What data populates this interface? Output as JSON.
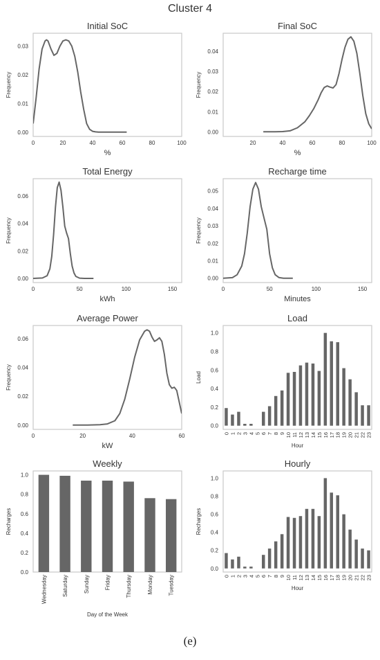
{
  "figure": {
    "title": "Cluster 4",
    "panel_label": "(e)"
  },
  "chart_data": [
    {
      "type": "line",
      "title": "Initial SoC",
      "xlabel": "%",
      "ylabel": "Frequency",
      "xlim": [
        0,
        100
      ],
      "ylim": [
        -0.0015,
        0.0345
      ],
      "xticks": [
        0,
        20,
        40,
        60,
        80,
        100
      ],
      "yticks": [
        0.0,
        0.01,
        0.02,
        0.03
      ],
      "ytick_labels": [
        "0.00",
        "0.01",
        "0.02",
        "0.03"
      ],
      "grid": false,
      "color": "#666666",
      "x": [
        0,
        2,
        4,
        6,
        8,
        9,
        10,
        12,
        14,
        16,
        18,
        20,
        22,
        24,
        26,
        28,
        30,
        32,
        34,
        36,
        38,
        40,
        42,
        44,
        46,
        48,
        50,
        55,
        60,
        63
      ],
      "y": [
        0.003,
        0.012,
        0.022,
        0.029,
        0.0318,
        0.0322,
        0.0318,
        0.029,
        0.0268,
        0.0275,
        0.03,
        0.0318,
        0.0322,
        0.0318,
        0.03,
        0.0265,
        0.021,
        0.014,
        0.008,
        0.003,
        0.001,
        0.0003,
        0.0001,
        0,
        0,
        0,
        0,
        0,
        0,
        0
      ]
    },
    {
      "type": "line",
      "title": "Final SoC",
      "xlabel": "%",
      "ylabel": "Frequency",
      "xlim": [
        0,
        100
      ],
      "ylim": [
        -0.0023,
        0.049
      ],
      "xticks": [
        20,
        40,
        60,
        80,
        100
      ],
      "yticks": [
        0.0,
        0.01,
        0.02,
        0.03,
        0.04
      ],
      "ytick_labels": [
        "0.00",
        "0.01",
        "0.02",
        "0.03",
        "0.04"
      ],
      "grid": false,
      "color": "#666666",
      "x": [
        27,
        35,
        40,
        45,
        50,
        55,
        58,
        61,
        64,
        66,
        68,
        70,
        72,
        74,
        76,
        78,
        80,
        82,
        84,
        86,
        88,
        90,
        92,
        94,
        96,
        98,
        100
      ],
      "y": [
        0,
        0,
        0.0001,
        0.0005,
        0.002,
        0.005,
        0.008,
        0.0115,
        0.016,
        0.0195,
        0.022,
        0.0228,
        0.0222,
        0.0218,
        0.0235,
        0.029,
        0.036,
        0.042,
        0.046,
        0.0472,
        0.045,
        0.039,
        0.029,
        0.018,
        0.009,
        0.004,
        0.0015
      ]
    },
    {
      "type": "line",
      "title": "Total Energy",
      "xlabel": "kWh",
      "ylabel": "Frequency",
      "xlim": [
        0,
        160
      ],
      "ylim": [
        -0.003,
        0.0725
      ],
      "xticks": [
        0,
        50,
        100,
        150
      ],
      "yticks": [
        0.0,
        0.02,
        0.04,
        0.06
      ],
      "ytick_labels": [
        "0.00",
        "0.02",
        "0.04",
        "0.06"
      ],
      "grid": false,
      "color": "#666666",
      "x": [
        0,
        10,
        15,
        18,
        20,
        22,
        24,
        26,
        28,
        30,
        32,
        34,
        36,
        38,
        40,
        42,
        44,
        46,
        50,
        55,
        60,
        65
      ],
      "y": [
        0,
        0.0003,
        0.002,
        0.007,
        0.016,
        0.032,
        0.052,
        0.066,
        0.07,
        0.064,
        0.052,
        0.038,
        0.033,
        0.029,
        0.018,
        0.009,
        0.004,
        0.0015,
        0.0002,
        0,
        0,
        0
      ]
    },
    {
      "type": "line",
      "title": "Recharge time",
      "xlabel": "Minutes",
      "ylabel": "Frequency",
      "xlim": [
        0,
        160
      ],
      "ylim": [
        -0.0025,
        0.057
      ],
      "xticks": [
        0,
        50,
        100,
        150
      ],
      "yticks": [
        0.0,
        0.01,
        0.02,
        0.03,
        0.04,
        0.05
      ],
      "ytick_labels": [
        "0.00",
        "0.01",
        "0.02",
        "0.03",
        "0.04",
        "0.05"
      ],
      "grid": false,
      "color": "#666666",
      "x": [
        0,
        10,
        15,
        20,
        23,
        26,
        29,
        32,
        35,
        38,
        41,
        44,
        47,
        50,
        53,
        56,
        60,
        65,
        70,
        75
      ],
      "y": [
        0,
        0.0003,
        0.002,
        0.007,
        0.014,
        0.026,
        0.041,
        0.051,
        0.0548,
        0.051,
        0.041,
        0.0345,
        0.028,
        0.014,
        0.006,
        0.002,
        0.0004,
        0,
        0,
        0
      ]
    },
    {
      "type": "line",
      "title": "Average Power",
      "xlabel": "kW",
      "ylabel": "Frequency",
      "xlim": [
        0,
        60
      ],
      "ylim": [
        -0.003,
        0.069
      ],
      "xticks": [
        0,
        20,
        40,
        60
      ],
      "yticks": [
        0.0,
        0.02,
        0.04,
        0.06
      ],
      "ytick_labels": [
        "0.00",
        "0.02",
        "0.04",
        "0.06"
      ],
      "grid": false,
      "color": "#666666",
      "x": [
        16,
        22,
        27,
        30,
        33,
        35,
        37,
        39,
        41,
        43,
        45,
        46,
        47,
        48,
        49,
        50,
        51,
        52,
        53,
        54,
        55,
        56,
        57,
        58,
        59,
        60
      ],
      "y": [
        0,
        0,
        0.0002,
        0.0008,
        0.003,
        0.008,
        0.018,
        0.032,
        0.047,
        0.059,
        0.065,
        0.066,
        0.065,
        0.061,
        0.058,
        0.059,
        0.0605,
        0.058,
        0.049,
        0.036,
        0.028,
        0.0255,
        0.0262,
        0.024,
        0.016,
        0.008
      ]
    },
    {
      "type": "bar",
      "title": "Load",
      "xlabel": "Hour",
      "ylabel": "Load",
      "ylim": [
        -0.04,
        1.08
      ],
      "yticks": [
        0.0,
        0.2,
        0.4,
        0.6,
        0.8,
        1.0
      ],
      "ytick_labels": [
        "0.0",
        "0.2",
        "0.4",
        "0.6",
        "0.8",
        "1.0"
      ],
      "grid": false,
      "color": "#666666",
      "tick_rotation": -90,
      "categories": [
        "0",
        "1",
        "2",
        "3",
        "4",
        "5",
        "6",
        "7",
        "8",
        "9",
        "10",
        "11",
        "12",
        "13",
        "14",
        "15",
        "16",
        "17",
        "18",
        "19",
        "20",
        "21",
        "22",
        "23"
      ],
      "values": [
        0.19,
        0.12,
        0.15,
        0.02,
        0.02,
        0.0,
        0.15,
        0.21,
        0.32,
        0.38,
        0.57,
        0.58,
        0.65,
        0.68,
        0.67,
        0.59,
        1.0,
        0.91,
        0.9,
        0.62,
        0.5,
        0.36,
        0.22,
        0.22
      ]
    },
    {
      "type": "bar",
      "title": "Weekly",
      "xlabel": "Day of the Week",
      "ylabel": "Recharges",
      "ylim": [
        0,
        1.04
      ],
      "yticks": [
        0.0,
        0.2,
        0.4,
        0.6,
        0.8,
        1.0
      ],
      "ytick_labels": [
        "0.0",
        "0.2",
        "0.4",
        "0.6",
        "0.8",
        "1.0"
      ],
      "grid": false,
      "color": "#666666",
      "tick_rotation": -90,
      "categories": [
        "Wednesday",
        "Saturday",
        "Sunday",
        "Friday",
        "Thursday",
        "Monday",
        "Tuesday"
      ],
      "values": [
        1.0,
        0.99,
        0.94,
        0.94,
        0.93,
        0.76,
        0.75
      ]
    },
    {
      "type": "bar",
      "title": "Hourly",
      "xlabel": "Hour",
      "ylabel": "Recharges",
      "ylim": [
        -0.04,
        1.08
      ],
      "yticks": [
        0.0,
        0.2,
        0.4,
        0.6,
        0.8,
        1.0
      ],
      "ytick_labels": [
        "0.0",
        "0.2",
        "0.4",
        "0.6",
        "0.8",
        "1.0"
      ],
      "grid": false,
      "color": "#666666",
      "tick_rotation": -90,
      "categories": [
        "0",
        "1",
        "2",
        "3",
        "4",
        "5",
        "6",
        "7",
        "8",
        "9",
        "10",
        "11",
        "12",
        "13",
        "14",
        "15",
        "16",
        "17",
        "18",
        "19",
        "20",
        "21",
        "22",
        "23"
      ],
      "values": [
        0.17,
        0.1,
        0.13,
        0.02,
        0.02,
        0.0,
        0.15,
        0.22,
        0.3,
        0.38,
        0.57,
        0.56,
        0.58,
        0.66,
        0.66,
        0.58,
        1.0,
        0.84,
        0.81,
        0.6,
        0.43,
        0.32,
        0.22,
        0.2
      ]
    }
  ]
}
